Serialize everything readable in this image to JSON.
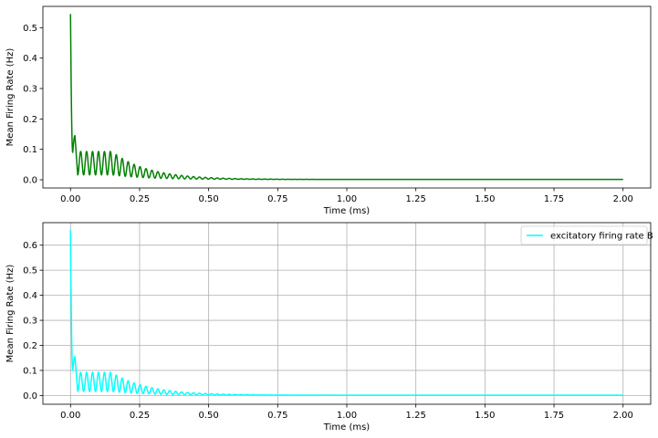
{
  "chart_data": [
    {
      "type": "line",
      "title": "",
      "xlabel": "Time (ms)",
      "ylabel": "Mean Firing Rate (Hz)",
      "xlim": [
        -0.1,
        2.1
      ],
      "ylim": [
        -0.027,
        0.57
      ],
      "xticks": [
        "0.00",
        "0.25",
        "0.50",
        "0.75",
        "1.00",
        "1.25",
        "1.50",
        "1.75",
        "2.00"
      ],
      "yticks": [
        "0.0",
        "0.1",
        "0.2",
        "0.3",
        "0.4",
        "0.5"
      ],
      "grid": false,
      "legend": null,
      "color": "#008000",
      "series": [
        {
          "initial_value": 0.545,
          "first_trough": 0.09,
          "first_peak": 0.145,
          "oscillation_peak": 0.093,
          "oscillation_trough": 0.016,
          "final_value": 0.001,
          "x_start": 0.0,
          "x_end": 2.0
        }
      ]
    },
    {
      "type": "line",
      "title": "",
      "xlabel": "Time (ms)",
      "ylabel": "Mean Firing Rate (Hz)",
      "xlim": [
        -0.1,
        2.1
      ],
      "ylim": [
        -0.035,
        0.69
      ],
      "xticks": [
        "0.00",
        "0.25",
        "0.50",
        "0.75",
        "1.00",
        "1.25",
        "1.50",
        "1.75",
        "2.00"
      ],
      "yticks": [
        "0.0",
        "0.1",
        "0.2",
        "0.3",
        "0.4",
        "0.5",
        "0.6"
      ],
      "grid": true,
      "legend": "upper right",
      "color": "#00ffff",
      "series": [
        {
          "name": "excitatory firing rate B",
          "initial_value": 0.66,
          "first_trough": 0.1,
          "first_peak": 0.155,
          "oscillation_peak": 0.092,
          "oscillation_trough": 0.016,
          "final_value": 0.001,
          "x_start": 0.0,
          "x_end": 2.0
        }
      ]
    }
  ]
}
